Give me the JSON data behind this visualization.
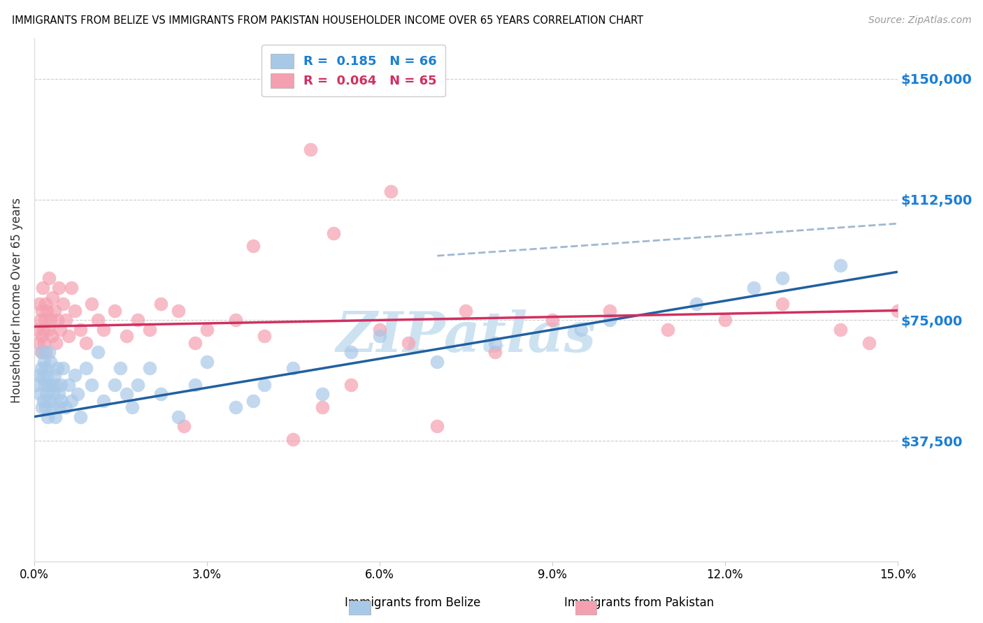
{
  "title": "IMMIGRANTS FROM BELIZE VS IMMIGRANTS FROM PAKISTAN HOUSEHOLDER INCOME OVER 65 YEARS CORRELATION CHART",
  "source": "Source: ZipAtlas.com",
  "ylabel": "Householder Income Over 65 years",
  "xlim": [
    0.0,
    15.0
  ],
  "ylim": [
    0,
    162500
  ],
  "yticks": [
    0,
    37500,
    75000,
    112500,
    150000
  ],
  "ytick_labels_right": [
    "",
    "$37,500",
    "$75,000",
    "$112,500",
    "$150,000"
  ],
  "xticks": [
    0.0,
    3.0,
    6.0,
    9.0,
    12.0,
    15.0
  ],
  "xtick_labels": [
    "0.0%",
    "3.0%",
    "6.0%",
    "9.0%",
    "12.0%",
    "15.0%"
  ],
  "belize_color": "#a8c8e8",
  "pakistan_color": "#f4a0b0",
  "belize_R": 0.185,
  "belize_N": 66,
  "pakistan_R": 0.064,
  "pakistan_N": 65,
  "belize_line_color": "#2060a0",
  "pakistan_line_color": "#d03060",
  "dashed_line_color": "#a0b8d0",
  "legend_label_belize": "Immigrants from Belize",
  "legend_label_pakistan": "Immigrants from Pakistan",
  "watermark_color": "#c8dff0",
  "belize_x": [
    0.05,
    0.08,
    0.1,
    0.12,
    0.13,
    0.14,
    0.15,
    0.16,
    0.17,
    0.18,
    0.19,
    0.2,
    0.21,
    0.22,
    0.23,
    0.25,
    0.26,
    0.27,
    0.28,
    0.3,
    0.32,
    0.33,
    0.35,
    0.37,
    0.38,
    0.4,
    0.42,
    0.44,
    0.46,
    0.48,
    0.5,
    0.55,
    0.6,
    0.65,
    0.7,
    0.75,
    0.8,
    0.9,
    1.0,
    1.1,
    1.2,
    1.4,
    1.5,
    1.6,
    1.7,
    1.8,
    2.0,
    2.2,
    2.5,
    2.8,
    3.0,
    3.5,
    3.8,
    4.0,
    4.5,
    5.0,
    5.5,
    6.0,
    7.0,
    8.0,
    9.5,
    10.0,
    11.5,
    12.5,
    13.0,
    14.0
  ],
  "belize_y": [
    55000,
    58000,
    52000,
    60000,
    48000,
    65000,
    57000,
    50000,
    62000,
    55000,
    48000,
    60000,
    52000,
    58000,
    45000,
    65000,
    55000,
    50000,
    62000,
    55000,
    48000,
    52000,
    58000,
    45000,
    55000,
    60000,
    52000,
    48000,
    55000,
    50000,
    60000,
    48000,
    55000,
    50000,
    58000,
    52000,
    45000,
    60000,
    55000,
    65000,
    50000,
    55000,
    60000,
    52000,
    48000,
    55000,
    60000,
    52000,
    45000,
    55000,
    62000,
    48000,
    50000,
    55000,
    60000,
    52000,
    65000,
    70000,
    62000,
    68000,
    72000,
    75000,
    80000,
    85000,
    88000,
    92000
  ],
  "pakistan_x": [
    0.05,
    0.07,
    0.09,
    0.11,
    0.12,
    0.13,
    0.14,
    0.15,
    0.16,
    0.17,
    0.18,
    0.19,
    0.2,
    0.22,
    0.24,
    0.26,
    0.28,
    0.3,
    0.32,
    0.35,
    0.38,
    0.4,
    0.42,
    0.45,
    0.5,
    0.55,
    0.6,
    0.65,
    0.7,
    0.8,
    0.9,
    1.0,
    1.1,
    1.2,
    1.4,
    1.6,
    1.8,
    2.0,
    2.2,
    2.5,
    2.8,
    3.0,
    3.5,
    4.0,
    4.5,
    5.0,
    5.5,
    6.0,
    6.5,
    7.0,
    7.5,
    8.0,
    9.0,
    10.0,
    11.0,
    12.0,
    13.0,
    14.0,
    14.5,
    15.0,
    5.2,
    6.2,
    4.8,
    3.8,
    2.6
  ],
  "pakistan_y": [
    72000,
    68000,
    80000,
    75000,
    65000,
    78000,
    70000,
    85000,
    72000,
    68000,
    75000,
    80000,
    65000,
    78000,
    72000,
    88000,
    75000,
    70000,
    82000,
    78000,
    68000,
    75000,
    85000,
    72000,
    80000,
    75000,
    70000,
    85000,
    78000,
    72000,
    68000,
    80000,
    75000,
    72000,
    78000,
    70000,
    75000,
    72000,
    80000,
    78000,
    68000,
    72000,
    75000,
    70000,
    38000,
    48000,
    55000,
    72000,
    68000,
    42000,
    78000,
    65000,
    75000,
    78000,
    72000,
    75000,
    80000,
    72000,
    68000,
    78000,
    102000,
    115000,
    128000,
    98000,
    42000
  ]
}
